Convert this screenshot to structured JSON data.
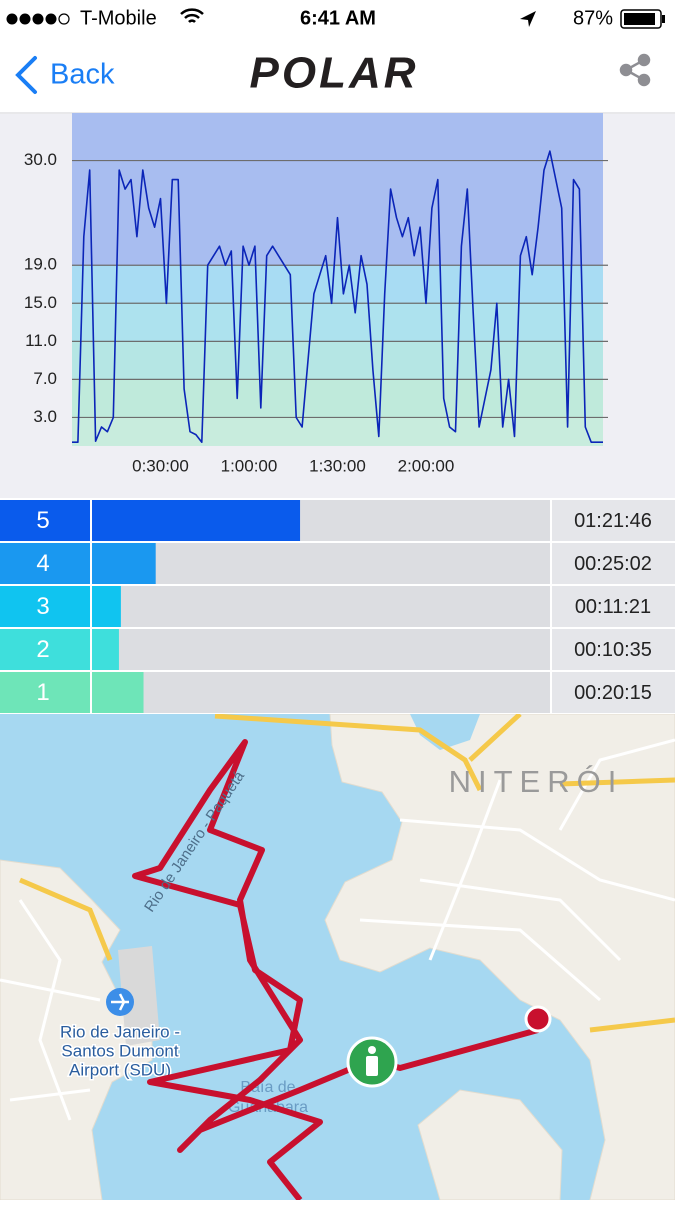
{
  "status_bar": {
    "carrier": "T-Mobile",
    "time": "6:41 AM",
    "battery": "87%"
  },
  "nav": {
    "back": "Back",
    "logo": "POLAR"
  },
  "chart_data": [
    {
      "type": "line",
      "x": [
        0,
        120,
        240,
        360,
        480,
        600,
        720,
        840,
        960,
        1080,
        1200,
        1320,
        1440,
        1560,
        1680,
        1800,
        1920,
        2040,
        2160,
        2280,
        2400,
        2520,
        2640,
        2760,
        2880,
        3000,
        3120,
        3240,
        3360,
        3480,
        3600,
        3720,
        3840,
        3960,
        4080,
        4200,
        4320,
        4440,
        4560,
        4680,
        4800,
        4920,
        5040,
        5160,
        5280,
        5400,
        5520,
        5640,
        5760,
        5880,
        6000,
        6120,
        6240,
        6360,
        6480,
        6600,
        6720,
        6840,
        6960,
        7080,
        7200,
        7320,
        7440,
        7560,
        7680,
        7800,
        7920,
        8040,
        8160,
        8280,
        8400,
        8520,
        8640,
        8760,
        8880,
        9000,
        9120,
        9240,
        9360,
        9480,
        9600,
        9720,
        9840,
        9960,
        10080,
        10200,
        10320,
        10440,
        10560,
        10680,
        10800
      ],
      "series": [
        {
          "color": "#0b25b8",
          "values": [
            0.4,
            0.4,
            22,
            29,
            0.5,
            2,
            1.5,
            3,
            29,
            27,
            28,
            22,
            29,
            25,
            23,
            26,
            15,
            28,
            28,
            6,
            1.5,
            1.2,
            0.4,
            19,
            20,
            21,
            19,
            20.5,
            5,
            21,
            19,
            21,
            4,
            20,
            21,
            20,
            19,
            18,
            3,
            2,
            9,
            16,
            18,
            20,
            15,
            24,
            16,
            19,
            14,
            20,
            17,
            8,
            1,
            16,
            27,
            24,
            22,
            24,
            20,
            23,
            15,
            25,
            28,
            5,
            2,
            1.5,
            21,
            27,
            14,
            2,
            5,
            8,
            15,
            2,
            7,
            1,
            20,
            22,
            18,
            23,
            29,
            31,
            28,
            25,
            2,
            28,
            27,
            2,
            0.4,
            0.4,
            0.4
          ]
        }
      ],
      "xlim": [
        0,
        10800
      ],
      "xticks": [
        {
          "value": 1800,
          "label": "0:30:00"
        },
        {
          "value": 3600,
          "label": "1:00:00"
        },
        {
          "value": 5400,
          "label": "1:30:00"
        },
        {
          "value": 7200,
          "label": "2:00:00"
        }
      ],
      "ylim": [
        0,
        35
      ],
      "yticks": [
        {
          "value": 3,
          "label": "3.0"
        },
        {
          "value": 7,
          "label": "7.0"
        },
        {
          "value": 11,
          "label": "11.0"
        },
        {
          "value": 15,
          "label": "15.0"
        },
        {
          "value": 19,
          "label": "19.0"
        },
        {
          "value": 30,
          "label": "30.0"
        }
      ],
      "grid": true,
      "band_colors": [
        "#c8ecdd",
        "#bfeadb",
        "#b5e6e4",
        "#ade2ee",
        "#a8dcf3",
        "#a8bdf0"
      ]
    },
    {
      "type": "hbar",
      "categories": [
        "5",
        "4",
        "3",
        "2",
        "1"
      ],
      "values": [
        4906,
        1502,
        681,
        635,
        1215
      ],
      "value_labels": [
        "01:21:46",
        "00:25:02",
        "00:11:21",
        "00:10:35",
        "00:20:15"
      ],
      "colors": [
        "#0a5bec",
        "#1a98f0",
        "#10c4f0",
        "#3edfdc",
        "#6ee5b8"
      ],
      "xlim": [
        0,
        10800
      ]
    }
  ],
  "map": {
    "city": "NITERÓI",
    "ferry": "Rio de Janeiro - Paquetá",
    "airport": [
      "Rio de Janeiro -",
      "Santos Dumont",
      "Airport (SDU)"
    ],
    "bay": [
      "Baía de",
      "Guanabara"
    ]
  }
}
